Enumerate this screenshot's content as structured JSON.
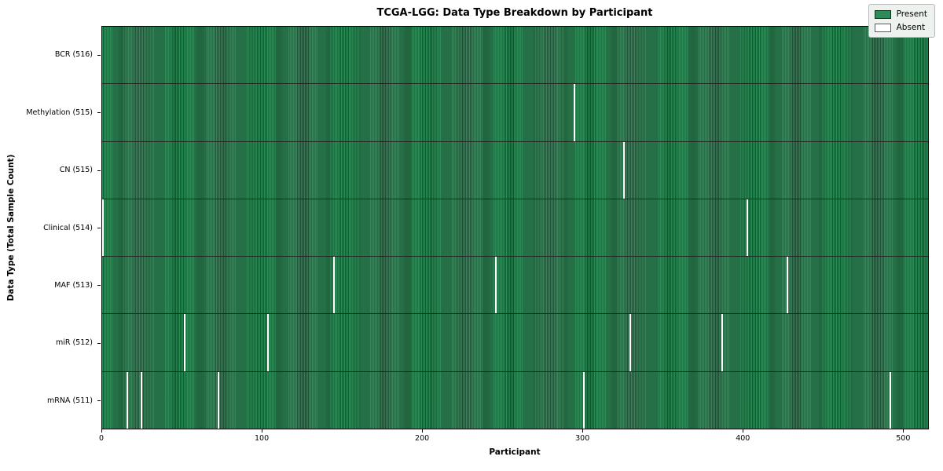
{
  "title": "TCGA-LGG: Data Type Breakdown by Participant",
  "colors": {
    "present": "#2e8b57",
    "present_dark": "#1c5636",
    "absent": "#ffffff",
    "separator": "#1f2a22",
    "legend_bg": "#eef2ee",
    "legend_border": "#b4bcb4"
  },
  "chart_data": {
    "type": "heatmap",
    "title": "TCGA-LGG: Data Type Breakdown by Participant",
    "xlabel": "Participant",
    "ylabel": "Data Type (Total Sample Count)",
    "n_participants": 516,
    "xlim": [
      0,
      516
    ],
    "x_ticks": [
      0,
      100,
      200,
      300,
      400,
      500
    ],
    "grid": false,
    "legend_position": "upper right",
    "legend": {
      "present_label": "Present",
      "absent_label": "Absent"
    },
    "rows": [
      {
        "label": "BCR (516)",
        "total": 516,
        "absent_participants": []
      },
      {
        "label": "Methylation (515)",
        "total": 515,
        "absent_participants": [
          294
        ]
      },
      {
        "label": "CN (515)",
        "total": 515,
        "absent_participants": [
          325
        ]
      },
      {
        "label": "Clinical (514)",
        "total": 514,
        "absent_participants": [
          0,
          402
        ]
      },
      {
        "label": "MAF (513)",
        "total": 513,
        "absent_participants": [
          144,
          245,
          427
        ]
      },
      {
        "label": "miR (512)",
        "total": 512,
        "absent_participants": [
          51,
          103,
          329,
          386
        ]
      },
      {
        "label": "mRNA (511)",
        "total": 511,
        "absent_participants": [
          15,
          24,
          72,
          300,
          491
        ]
      }
    ]
  }
}
